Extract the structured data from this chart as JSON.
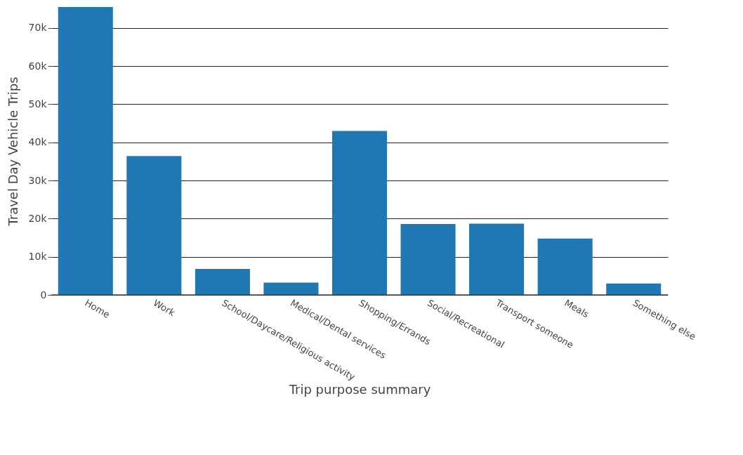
{
  "chart_data": {
    "type": "bar",
    "xlabel": "Trip purpose summary",
    "ylabel": "Travel Day Vehicle Trips",
    "categories": [
      "Home",
      "Work",
      "School/Daycare/Religious activity",
      "Medical/Dental services",
      "Shopping/Errands",
      "Social/Recreational",
      "Transport someone",
      "Meals",
      "Something else"
    ],
    "values": [
      75500,
      36400,
      6800,
      3200,
      43000,
      18600,
      18700,
      14800,
      3000
    ],
    "color": "#1f77b4",
    "ylim": [
      0,
      75500
    ],
    "yticks": [
      0,
      {
        "value": 10000,
        "label": "10k"
      },
      {
        "value": 20000,
        "label": "20k"
      },
      {
        "value": 30000,
        "label": "30k"
      },
      {
        "value": 40000,
        "label": "40k"
      },
      {
        "value": 50000,
        "label": "50k"
      },
      {
        "value": 60000,
        "label": "60k"
      },
      {
        "value": 70000,
        "label": "70k"
      }
    ],
    "grid": "y"
  }
}
